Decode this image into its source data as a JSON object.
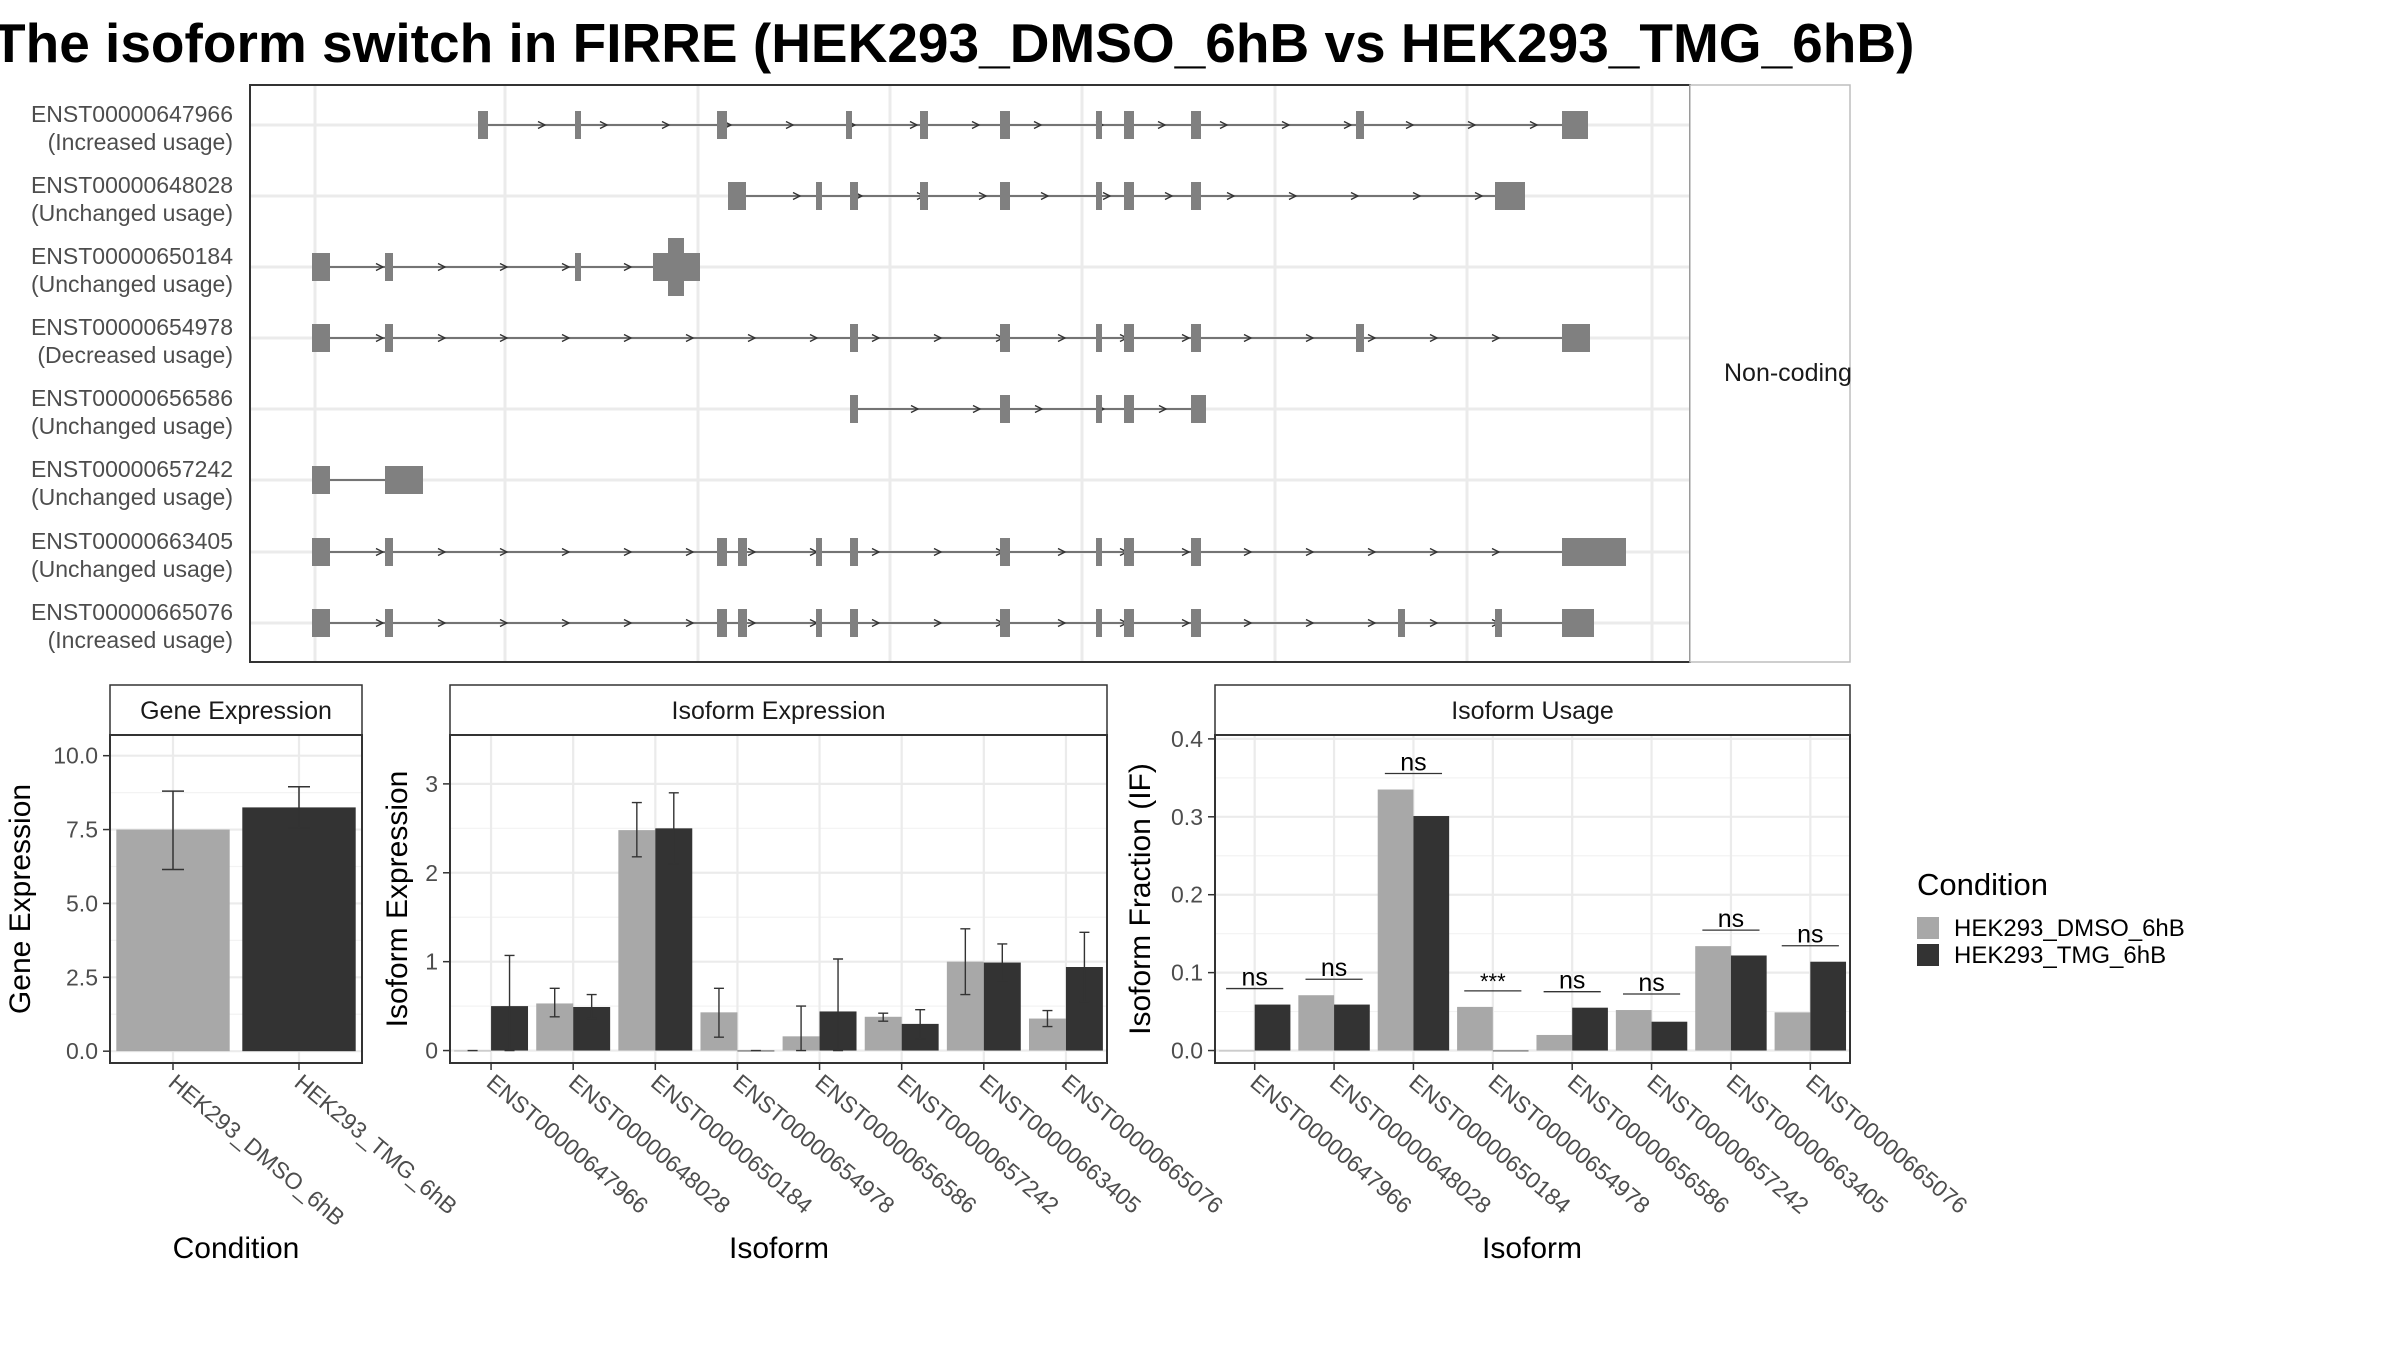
{
  "title": "The isoform switch in FIRRE (HEK293_DMSO_6hB vs HEK293_TMG_6hB)",
  "colors": {
    "dmso": "#a8a8a8",
    "tmg": "#333333",
    "exon": "#808080",
    "grid": "#ebebeb",
    "panel_border": "#333333",
    "strip_border": "#bdbdbd"
  },
  "chart_data": [
    {
      "type": "gene-structure",
      "facet_label": "Non-coding",
      "grid": true,
      "tracks": [
        {
          "id": "ENST00000647966",
          "usage": "(Increased usage)"
        },
        {
          "id": "ENST00000648028",
          "usage": "(Unchanged usage)"
        },
        {
          "id": "ENST00000650184",
          "usage": "(Unchanged usage)"
        },
        {
          "id": "ENST00000654978",
          "usage": "(Decreased usage)"
        },
        {
          "id": "ENST00000656586",
          "usage": "(Unchanged usage)"
        },
        {
          "id": "ENST00000657242",
          "usage": "(Unchanged usage)"
        },
        {
          "id": "ENST00000663405",
          "usage": "(Unchanged usage)"
        },
        {
          "id": "ENST00000665076",
          "usage": "(Increased usage)"
        }
      ]
    },
    {
      "type": "bar",
      "title": "Gene Expression",
      "xlabel": "Condition",
      "ylabel": "Gene Expression",
      "ylim": [
        -0.4,
        10.7
      ],
      "yticks": [
        "0.0",
        "2.5",
        "5.0",
        "7.5",
        "10.0"
      ],
      "categories": [
        "HEK293_DMSO_6hB",
        "HEK293_TMG_6hB"
      ],
      "values": [
        7.5,
        8.25
      ],
      "error_bars": [
        [
          6.15,
          8.8
        ],
        [
          7.55,
          8.95
        ]
      ],
      "grid": true
    },
    {
      "type": "bar",
      "title": "Isoform Expression",
      "xlabel": "Isoform",
      "ylabel": "Isoform Expression",
      "ylim": [
        -0.14,
        3.55
      ],
      "yticks": [
        "0",
        "1",
        "2",
        "3"
      ],
      "categories": [
        "ENST00000647966",
        "ENST00000648028",
        "ENST00000650184",
        "ENST00000654978",
        "ENST00000656586",
        "ENST00000657242",
        "ENST00000663405",
        "ENST00000665076"
      ],
      "series": [
        {
          "name": "HEK293_DMSO_6hB",
          "values": [
            0.0,
            0.53,
            2.48,
            0.43,
            0.16,
            0.38,
            1.0,
            0.36
          ],
          "error_bars": [
            [
              0.0,
              0.0
            ],
            [
              0.38,
              0.7
            ],
            [
              2.18,
              2.79
            ],
            [
              0.15,
              0.7
            ],
            [
              0.0,
              0.5
            ],
            [
              0.33,
              0.42
            ],
            [
              0.63,
              1.37
            ],
            [
              0.27,
              0.45
            ]
          ]
        },
        {
          "name": "HEK293_TMG_6hB",
          "values": [
            0.5,
            0.49,
            2.5,
            0.0,
            0.44,
            0.3,
            0.99,
            0.94
          ],
          "error_bars": [
            [
              0.0,
              1.07
            ],
            [
              0.36,
              0.63
            ],
            [
              2.1,
              2.9
            ],
            [
              0.0,
              0.0
            ],
            [
              0.0,
              1.03
            ],
            [
              0.13,
              0.46
            ],
            [
              0.78,
              1.2
            ],
            [
              0.55,
              1.33
            ]
          ]
        }
      ],
      "grid": true
    },
    {
      "type": "bar",
      "title": "Isoform Usage",
      "xlabel": "Isoform",
      "ylabel": "Isoform Fraction (IF)",
      "ylim": [
        -0.016,
        0.405
      ],
      "yticks": [
        "0.0",
        "0.1",
        "0.2",
        "0.3",
        "0.4"
      ],
      "categories": [
        "ENST00000647966",
        "ENST00000648028",
        "ENST00000650184",
        "ENST00000654978",
        "ENST00000656586",
        "ENST00000657242",
        "ENST00000663405",
        "ENST00000665076"
      ],
      "series": [
        {
          "name": "HEK293_DMSO_6hB",
          "values": [
            0.0,
            0.071,
            0.335,
            0.056,
            0.02,
            0.052,
            0.134,
            0.049
          ]
        },
        {
          "name": "HEK293_TMG_6hB",
          "values": [
            0.059,
            0.059,
            0.301,
            0.0,
            0.055,
            0.037,
            0.122,
            0.114
          ]
        }
      ],
      "significance": [
        "ns",
        "ns",
        "ns",
        "***",
        "ns",
        "ns",
        "ns",
        "ns"
      ],
      "legend": {
        "title": "Condition",
        "position": "right",
        "entries": [
          "HEK293_DMSO_6hB",
          "HEK293_TMG_6hB"
        ]
      },
      "grid": true
    }
  ]
}
